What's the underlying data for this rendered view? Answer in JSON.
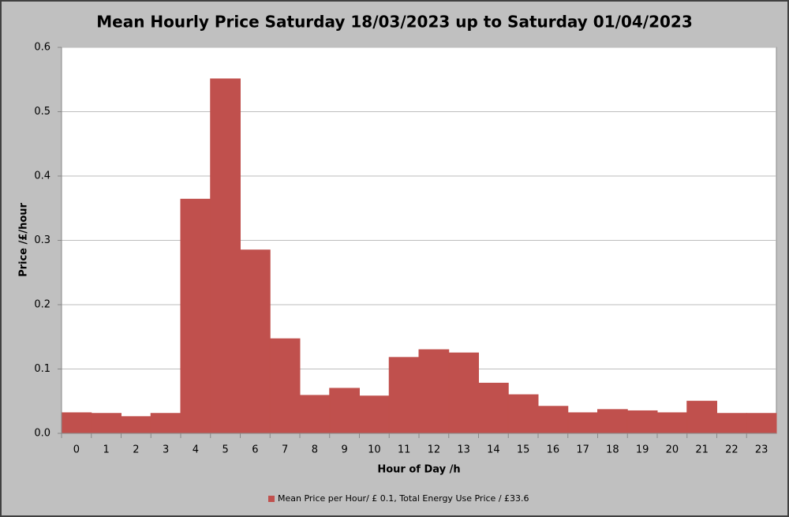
{
  "chart_data": {
    "type": "bar",
    "title": "Mean Hourly Price Saturday 18/03/2023 up to Saturday 01/04/2023",
    "x_label": "Hour of Day /h",
    "y_label": "Price /£/hour",
    "categories": [
      "0",
      "1",
      "2",
      "3",
      "4",
      "5",
      "6",
      "7",
      "8",
      "9",
      "10",
      "11",
      "12",
      "13",
      "14",
      "15",
      "16",
      "17",
      "18",
      "19",
      "20",
      "21",
      "22",
      "23"
    ],
    "series": [
      {
        "name": "Mean Price per Hour/ £ 0.1, Total Energy Use Price / £33.6",
        "color": "#c0504d",
        "values": [
          0.032,
          0.031,
          0.026,
          0.031,
          0.364,
          0.551,
          0.285,
          0.147,
          0.059,
          0.07,
          0.058,
          0.118,
          0.13,
          0.125,
          0.078,
          0.06,
          0.042,
          0.032,
          0.037,
          0.035,
          0.032,
          0.05,
          0.031,
          0.031
        ]
      }
    ],
    "ylim": [
      0,
      0.6
    ],
    "yticks": [
      {
        "value": 0,
        "label": "0.0"
      },
      0.1,
      0.2,
      0.3,
      0.4,
      0.5,
      0.6
    ],
    "grid": true,
    "legend": "bottom"
  }
}
